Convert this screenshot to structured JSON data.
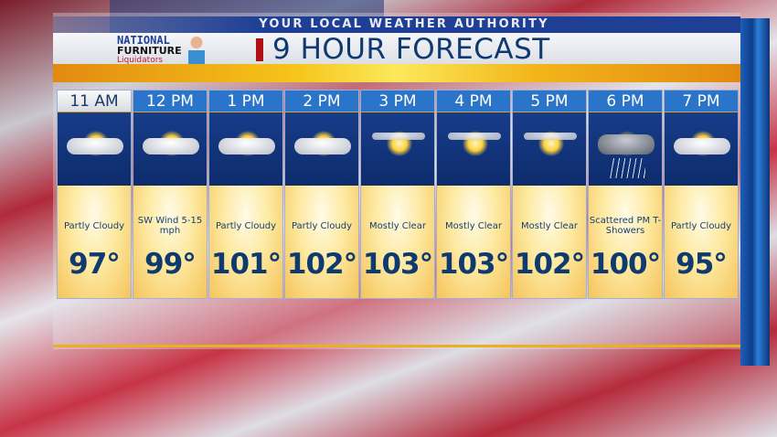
{
  "header": {
    "tagline": "YOUR LOCAL WEATHER AUTHORITY",
    "title": "9 HOUR FORECAST"
  },
  "sponsor": {
    "line1": "NATIONAL",
    "line2": "FURNITURE",
    "line3": "Liquidators"
  },
  "colors": {
    "accent_blue": "#2a74c9",
    "title_navy": "#0f3a70",
    "accent_yellow": "#f6c41a",
    "marker_red": "#b01015"
  },
  "forecast": [
    {
      "hour": "11 AM",
      "icon": "partly-cloudy-icon",
      "condition": "Partly Cloudy",
      "temp": "97°",
      "selected": true
    },
    {
      "hour": "12 PM",
      "icon": "partly-cloudy-icon",
      "condition": "SW Wind 5-15 mph",
      "temp": "99°"
    },
    {
      "hour": "1 PM",
      "icon": "partly-cloudy-icon",
      "condition": "Partly Cloudy",
      "temp": "101°"
    },
    {
      "hour": "2 PM",
      "icon": "partly-cloudy-icon",
      "condition": "Partly Cloudy",
      "temp": "102°"
    },
    {
      "hour": "3 PM",
      "icon": "mostly-clear-icon",
      "condition": "Mostly Clear",
      "temp": "103°"
    },
    {
      "hour": "4 PM",
      "icon": "mostly-clear-icon",
      "condition": "Mostly Clear",
      "temp": "103°"
    },
    {
      "hour": "5 PM",
      "icon": "mostly-clear-icon",
      "condition": "Mostly Clear",
      "temp": "102°"
    },
    {
      "hour": "6 PM",
      "icon": "thunderstorm-icon",
      "condition": "Scattered PM T-Showers",
      "temp": "100°"
    },
    {
      "hour": "7 PM",
      "icon": "partly-cloudy-icon",
      "condition": "Partly Cloudy",
      "temp": "95°"
    }
  ]
}
